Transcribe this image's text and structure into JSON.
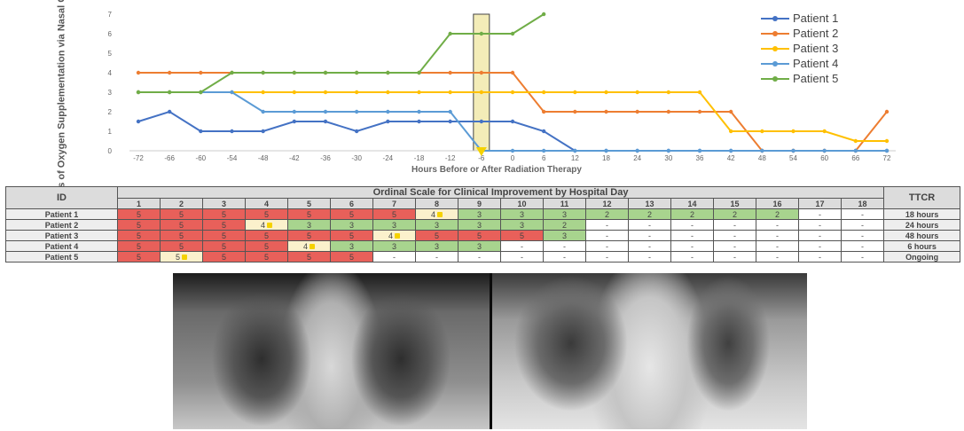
{
  "chart_data": {
    "type": "line",
    "title": "",
    "ylabel": "Liters of Oxygen Supplementation via Nasal Cannula",
    "xlabel": "Hours Before or After Radiation Therapy",
    "x": [
      "-72",
      "-66",
      "-60",
      "-54",
      "-48",
      "-42",
      "-36",
      "-30",
      "-24",
      "-18",
      "-12",
      "-6",
      "0",
      "6",
      "12",
      "18",
      "24",
      "30",
      "36",
      "42",
      "48",
      "54",
      "60",
      "66",
      "72"
    ],
    "ylim": [
      0,
      7
    ],
    "series": [
      {
        "name": "Patient 1",
        "color": "#4472c4",
        "values": [
          1.5,
          2,
          1,
          1,
          1,
          1.5,
          1.5,
          1,
          1.5,
          1.5,
          1.5,
          1.5,
          1.5,
          1,
          0,
          0,
          0,
          0,
          0,
          0,
          0,
          0,
          0,
          0,
          0
        ]
      },
      {
        "name": "Patient 2",
        "color": "#ed7d31",
        "values": [
          4,
          4,
          4,
          4,
          4,
          4,
          4,
          4,
          4,
          4,
          4,
          4,
          4,
          2,
          2,
          2,
          2,
          2,
          2,
          2,
          0,
          0,
          0,
          0,
          2
        ]
      },
      {
        "name": "Patient 3",
        "color": "#ffc000",
        "values": [
          3,
          3,
          3,
          3,
          3,
          3,
          3,
          3,
          3,
          3,
          3,
          3,
          3,
          3,
          3,
          3,
          3,
          3,
          3,
          1,
          1,
          1,
          1,
          0.5,
          0.5
        ]
      },
      {
        "name": "Patient 4",
        "color": "#5b9bd5",
        "values": [
          3,
          3,
          3,
          3,
          2,
          2,
          2,
          2,
          2,
          2,
          2,
          0,
          0,
          0,
          0,
          0,
          0,
          0,
          0,
          0,
          0,
          0,
          0,
          0,
          0
        ]
      },
      {
        "name": "Patient 5",
        "color": "#70ad47",
        "values": [
          3,
          3,
          3,
          4,
          4,
          4,
          4,
          4,
          4,
          4,
          6,
          6,
          6,
          7,
          null,
          null,
          null,
          null,
          null,
          null,
          null,
          null,
          null,
          null,
          null
        ]
      }
    ],
    "annotation": {
      "type": "highlight-band",
      "x": "-6",
      "color": "#f3ecb8"
    }
  },
  "table": {
    "title": "Ordinal Scale for Clinical Improvement by Hospital Day",
    "id_header": "ID",
    "ttcr_header": "TTCR",
    "days": [
      "1",
      "2",
      "3",
      "4",
      "5",
      "6",
      "7",
      "8",
      "9",
      "10",
      "11",
      "12",
      "13",
      "14",
      "15",
      "16",
      "17",
      "18"
    ],
    "rows": [
      {
        "id": "Patient 1",
        "ttcr": "18 hours",
        "cells": [
          [
            "5",
            "red"
          ],
          [
            "5",
            "red"
          ],
          [
            "5",
            "red"
          ],
          [
            "5",
            "red"
          ],
          [
            "5",
            "red"
          ],
          [
            "5",
            "red"
          ],
          [
            "5",
            "red"
          ],
          [
            "4",
            "cream",
            "star"
          ],
          [
            "3",
            "green"
          ],
          [
            "3",
            "green"
          ],
          [
            "3",
            "green"
          ],
          [
            "2",
            "green"
          ],
          [
            "2",
            "green"
          ],
          [
            "2",
            "green"
          ],
          [
            "2",
            "green"
          ],
          [
            "2",
            "green"
          ],
          [
            "-",
            "white"
          ],
          [
            "-",
            "white"
          ]
        ]
      },
      {
        "id": "Patient 2",
        "ttcr": "24 hours",
        "cells": [
          [
            "5",
            "red"
          ],
          [
            "5",
            "red"
          ],
          [
            "5",
            "red"
          ],
          [
            "4",
            "cream",
            "star"
          ],
          [
            "3",
            "green"
          ],
          [
            "3",
            "green"
          ],
          [
            "3",
            "green"
          ],
          [
            "3",
            "green"
          ],
          [
            "3",
            "green"
          ],
          [
            "3",
            "green"
          ],
          [
            "2",
            "green"
          ],
          [
            "-",
            "white"
          ],
          [
            "-",
            "white"
          ],
          [
            "-",
            "white"
          ],
          [
            "-",
            "white"
          ],
          [
            "-",
            "white"
          ],
          [
            "-",
            "white"
          ],
          [
            "-",
            "white"
          ]
        ]
      },
      {
        "id": "Patient 3",
        "ttcr": "48 hours",
        "cells": [
          [
            "5",
            "red"
          ],
          [
            "5",
            "red"
          ],
          [
            "5",
            "red"
          ],
          [
            "5",
            "red"
          ],
          [
            "5",
            "red"
          ],
          [
            "5",
            "red"
          ],
          [
            "4",
            "cream",
            "star"
          ],
          [
            "5",
            "red"
          ],
          [
            "5",
            "red"
          ],
          [
            "5",
            "red"
          ],
          [
            "3",
            "green"
          ],
          [
            "-",
            "white"
          ],
          [
            "-",
            "white"
          ],
          [
            "-",
            "white"
          ],
          [
            "-",
            "white"
          ],
          [
            "-",
            "white"
          ],
          [
            "-",
            "white"
          ],
          [
            "-",
            "white"
          ]
        ]
      },
      {
        "id": "Patient 4",
        "ttcr": "6 hours",
        "cells": [
          [
            "5",
            "red"
          ],
          [
            "5",
            "red"
          ],
          [
            "5",
            "red"
          ],
          [
            "5",
            "red"
          ],
          [
            "4",
            "cream",
            "star"
          ],
          [
            "3",
            "green"
          ],
          [
            "3",
            "green"
          ],
          [
            "3",
            "green"
          ],
          [
            "3",
            "green"
          ],
          [
            "-",
            "white"
          ],
          [
            "-",
            "white"
          ],
          [
            "-",
            "white"
          ],
          [
            "-",
            "white"
          ],
          [
            "-",
            "white"
          ],
          [
            "-",
            "white"
          ],
          [
            "-",
            "white"
          ],
          [
            "-",
            "white"
          ],
          [
            "-",
            "white"
          ]
        ]
      },
      {
        "id": "Patient 5",
        "ttcr": "Ongoing",
        "cells": [
          [
            "5",
            "red"
          ],
          [
            "5",
            "cream",
            "star"
          ],
          [
            "5",
            "red"
          ],
          [
            "5",
            "red"
          ],
          [
            "5",
            "red"
          ],
          [
            "5",
            "red"
          ],
          [
            "-",
            "white"
          ],
          [
            "-",
            "white"
          ],
          [
            "-",
            "white"
          ],
          [
            "-",
            "white"
          ],
          [
            "-",
            "white"
          ],
          [
            "-",
            "white"
          ],
          [
            "-",
            "white"
          ],
          [
            "-",
            "white"
          ],
          [
            "-",
            "white"
          ],
          [
            "-",
            "white"
          ],
          [
            "-",
            "white"
          ],
          [
            "-",
            "white"
          ]
        ]
      }
    ]
  },
  "xrays": {
    "left": {
      "icon": "chest-xray-before-icon"
    },
    "right": {
      "icon": "chest-xray-after-icon"
    }
  }
}
